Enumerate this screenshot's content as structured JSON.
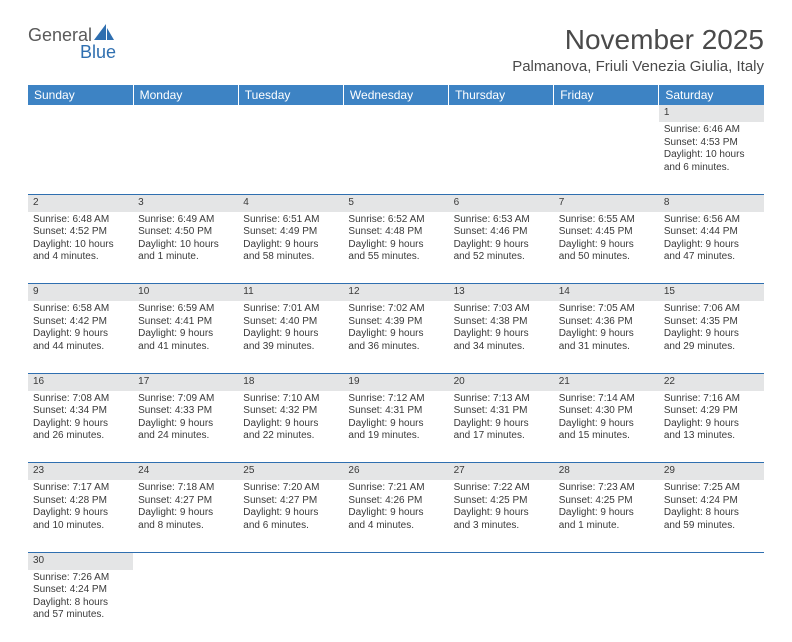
{
  "logo": {
    "word1": "General",
    "word2": "Blue"
  },
  "title": "November 2025",
  "location": "Palmanova, Friuli Venezia Giulia, Italy",
  "colors": {
    "header_bg": "#3d83c4",
    "header_text": "#ffffff",
    "rule": "#2f6fb0",
    "daynum_bg": "#e4e5e6",
    "text": "#3a3a3a",
    "logo_gray": "#5a5a5a",
    "logo_blue": "#2f6fb0"
  },
  "day_headers": [
    "Sunday",
    "Monday",
    "Tuesday",
    "Wednesday",
    "Thursday",
    "Friday",
    "Saturday"
  ],
  "weeks": [
    [
      null,
      null,
      null,
      null,
      null,
      null,
      {
        "n": "1",
        "sr": "Sunrise: 6:46 AM",
        "ss": "Sunset: 4:53 PM",
        "d1": "Daylight: 10 hours",
        "d2": "and 6 minutes."
      }
    ],
    [
      {
        "n": "2",
        "sr": "Sunrise: 6:48 AM",
        "ss": "Sunset: 4:52 PM",
        "d1": "Daylight: 10 hours",
        "d2": "and 4 minutes."
      },
      {
        "n": "3",
        "sr": "Sunrise: 6:49 AM",
        "ss": "Sunset: 4:50 PM",
        "d1": "Daylight: 10 hours",
        "d2": "and 1 minute."
      },
      {
        "n": "4",
        "sr": "Sunrise: 6:51 AM",
        "ss": "Sunset: 4:49 PM",
        "d1": "Daylight: 9 hours",
        "d2": "and 58 minutes."
      },
      {
        "n": "5",
        "sr": "Sunrise: 6:52 AM",
        "ss": "Sunset: 4:48 PM",
        "d1": "Daylight: 9 hours",
        "d2": "and 55 minutes."
      },
      {
        "n": "6",
        "sr": "Sunrise: 6:53 AM",
        "ss": "Sunset: 4:46 PM",
        "d1": "Daylight: 9 hours",
        "d2": "and 52 minutes."
      },
      {
        "n": "7",
        "sr": "Sunrise: 6:55 AM",
        "ss": "Sunset: 4:45 PM",
        "d1": "Daylight: 9 hours",
        "d2": "and 50 minutes."
      },
      {
        "n": "8",
        "sr": "Sunrise: 6:56 AM",
        "ss": "Sunset: 4:44 PM",
        "d1": "Daylight: 9 hours",
        "d2": "and 47 minutes."
      }
    ],
    [
      {
        "n": "9",
        "sr": "Sunrise: 6:58 AM",
        "ss": "Sunset: 4:42 PM",
        "d1": "Daylight: 9 hours",
        "d2": "and 44 minutes."
      },
      {
        "n": "10",
        "sr": "Sunrise: 6:59 AM",
        "ss": "Sunset: 4:41 PM",
        "d1": "Daylight: 9 hours",
        "d2": "and 41 minutes."
      },
      {
        "n": "11",
        "sr": "Sunrise: 7:01 AM",
        "ss": "Sunset: 4:40 PM",
        "d1": "Daylight: 9 hours",
        "d2": "and 39 minutes."
      },
      {
        "n": "12",
        "sr": "Sunrise: 7:02 AM",
        "ss": "Sunset: 4:39 PM",
        "d1": "Daylight: 9 hours",
        "d2": "and 36 minutes."
      },
      {
        "n": "13",
        "sr": "Sunrise: 7:03 AM",
        "ss": "Sunset: 4:38 PM",
        "d1": "Daylight: 9 hours",
        "d2": "and 34 minutes."
      },
      {
        "n": "14",
        "sr": "Sunrise: 7:05 AM",
        "ss": "Sunset: 4:36 PM",
        "d1": "Daylight: 9 hours",
        "d2": "and 31 minutes."
      },
      {
        "n": "15",
        "sr": "Sunrise: 7:06 AM",
        "ss": "Sunset: 4:35 PM",
        "d1": "Daylight: 9 hours",
        "d2": "and 29 minutes."
      }
    ],
    [
      {
        "n": "16",
        "sr": "Sunrise: 7:08 AM",
        "ss": "Sunset: 4:34 PM",
        "d1": "Daylight: 9 hours",
        "d2": "and 26 minutes."
      },
      {
        "n": "17",
        "sr": "Sunrise: 7:09 AM",
        "ss": "Sunset: 4:33 PM",
        "d1": "Daylight: 9 hours",
        "d2": "and 24 minutes."
      },
      {
        "n": "18",
        "sr": "Sunrise: 7:10 AM",
        "ss": "Sunset: 4:32 PM",
        "d1": "Daylight: 9 hours",
        "d2": "and 22 minutes."
      },
      {
        "n": "19",
        "sr": "Sunrise: 7:12 AM",
        "ss": "Sunset: 4:31 PM",
        "d1": "Daylight: 9 hours",
        "d2": "and 19 minutes."
      },
      {
        "n": "20",
        "sr": "Sunrise: 7:13 AM",
        "ss": "Sunset: 4:31 PM",
        "d1": "Daylight: 9 hours",
        "d2": "and 17 minutes."
      },
      {
        "n": "21",
        "sr": "Sunrise: 7:14 AM",
        "ss": "Sunset: 4:30 PM",
        "d1": "Daylight: 9 hours",
        "d2": "and 15 minutes."
      },
      {
        "n": "22",
        "sr": "Sunrise: 7:16 AM",
        "ss": "Sunset: 4:29 PM",
        "d1": "Daylight: 9 hours",
        "d2": "and 13 minutes."
      }
    ],
    [
      {
        "n": "23",
        "sr": "Sunrise: 7:17 AM",
        "ss": "Sunset: 4:28 PM",
        "d1": "Daylight: 9 hours",
        "d2": "and 10 minutes."
      },
      {
        "n": "24",
        "sr": "Sunrise: 7:18 AM",
        "ss": "Sunset: 4:27 PM",
        "d1": "Daylight: 9 hours",
        "d2": "and 8 minutes."
      },
      {
        "n": "25",
        "sr": "Sunrise: 7:20 AM",
        "ss": "Sunset: 4:27 PM",
        "d1": "Daylight: 9 hours",
        "d2": "and 6 minutes."
      },
      {
        "n": "26",
        "sr": "Sunrise: 7:21 AM",
        "ss": "Sunset: 4:26 PM",
        "d1": "Daylight: 9 hours",
        "d2": "and 4 minutes."
      },
      {
        "n": "27",
        "sr": "Sunrise: 7:22 AM",
        "ss": "Sunset: 4:25 PM",
        "d1": "Daylight: 9 hours",
        "d2": "and 3 minutes."
      },
      {
        "n": "28",
        "sr": "Sunrise: 7:23 AM",
        "ss": "Sunset: 4:25 PM",
        "d1": "Daylight: 9 hours",
        "d2": "and 1 minute."
      },
      {
        "n": "29",
        "sr": "Sunrise: 7:25 AM",
        "ss": "Sunset: 4:24 PM",
        "d1": "Daylight: 8 hours",
        "d2": "and 59 minutes."
      }
    ],
    [
      {
        "n": "30",
        "sr": "Sunrise: 7:26 AM",
        "ss": "Sunset: 4:24 PM",
        "d1": "Daylight: 8 hours",
        "d2": "and 57 minutes."
      },
      null,
      null,
      null,
      null,
      null,
      null
    ]
  ]
}
